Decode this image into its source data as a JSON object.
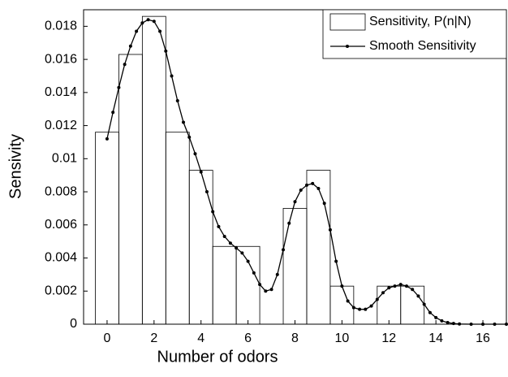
{
  "chart_data": {
    "type": "bar",
    "xlabel": "Number of odors",
    "ylabel": "Sensivity",
    "xlim": [
      -1,
      17
    ],
    "ylim": [
      0,
      0.019
    ],
    "xticks": [
      0,
      2,
      4,
      6,
      8,
      10,
      12,
      14,
      16
    ],
    "yticks": [
      0,
      0.002,
      0.004,
      0.006,
      0.008,
      0.01,
      0.012,
      0.014,
      0.016,
      0.018
    ],
    "legend": "upper right",
    "series": [
      {
        "name": "Sensitivity, P(n|N)",
        "type": "bar",
        "color": "#000000",
        "x": [
          0,
          1,
          2,
          3,
          4,
          5,
          6,
          7,
          8,
          9,
          10,
          11,
          12,
          13
        ],
        "values": [
          0.0116,
          0.0163,
          0.0186,
          0.0116,
          0.0093,
          0.0047,
          0.0047,
          0,
          0.007,
          0.0093,
          0.0023,
          0,
          0.0023,
          0.0023
        ]
      },
      {
        "name": "Smooth Sensitivity",
        "type": "line",
        "color": "#000000",
        "x": [
          0,
          0.25,
          0.5,
          0.75,
          1,
          1.25,
          1.5,
          1.75,
          2,
          2.25,
          2.5,
          2.75,
          3,
          3.25,
          3.5,
          3.75,
          4,
          4.25,
          4.5,
          4.75,
          5,
          5.25,
          5.5,
          5.75,
          6,
          6.25,
          6.5,
          6.75,
          7,
          7.25,
          7.5,
          7.75,
          8,
          8.25,
          8.5,
          8.75,
          9,
          9.25,
          9.5,
          9.75,
          10,
          10.25,
          10.5,
          10.75,
          11,
          11.25,
          11.5,
          11.75,
          12,
          12.25,
          12.5,
          12.75,
          13,
          13.25,
          13.5,
          13.75,
          14,
          14.25,
          14.5,
          14.75,
          15,
          15.5,
          16,
          16.5,
          17
        ],
        "values": [
          0.0112,
          0.0128,
          0.0143,
          0.0157,
          0.0168,
          0.0177,
          0.0182,
          0.0184,
          0.0183,
          0.0177,
          0.0165,
          0.015,
          0.0135,
          0.0122,
          0.0113,
          0.0103,
          0.0092,
          0.008,
          0.0068,
          0.0059,
          0.0053,
          0.0049,
          0.0046,
          0.0043,
          0.0038,
          0.0031,
          0.0024,
          0.002,
          0.0021,
          0.003,
          0.0045,
          0.0061,
          0.0074,
          0.0081,
          0.0084,
          0.0085,
          0.0082,
          0.0073,
          0.0057,
          0.0038,
          0.0023,
          0.0014,
          0.001,
          0.0009,
          0.0009,
          0.0011,
          0.0015,
          0.0019,
          0.0022,
          0.0023,
          0.0024,
          0.0023,
          0.0021,
          0.0017,
          0.0012,
          0.0007,
          0.0004,
          0.0002,
          0.0001,
          4e-05,
          1e-05,
          0,
          0,
          0,
          0
        ]
      }
    ]
  }
}
